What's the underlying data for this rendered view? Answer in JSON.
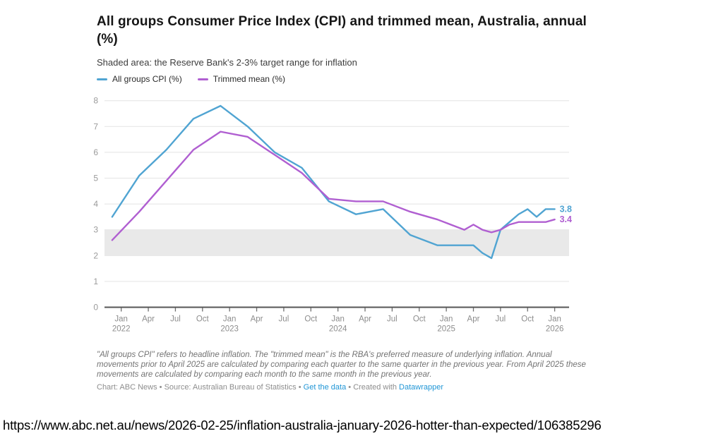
{
  "header": {
    "title": "All groups Consumer Price Index (CPI) and trimmed mean, Australia, annual (%)",
    "subtitle": "Shaded area: the Reserve Bank's 2-3% target range for inflation"
  },
  "legend": {
    "items": [
      {
        "label": "All groups CPI (%)",
        "color": "#50a4d2"
      },
      {
        "label": "Trimmed mean (%)",
        "color": "#b05fd1"
      }
    ]
  },
  "chart_data": {
    "type": "line",
    "title": "All groups Consumer Price Index (CPI) and trimmed mean, Australia, annual (%)",
    "subtitle": "Shaded area: the Reserve Bank's 2-3% target range for inflation",
    "xlabel": "",
    "ylabel": "",
    "ylim": [
      0,
      8
    ],
    "y_ticks": [
      0,
      1,
      2,
      3,
      4,
      5,
      6,
      7,
      8
    ],
    "grid": "horizontal",
    "legend_position": "top",
    "target_band": {
      "from": 2,
      "to": 3,
      "color": "#e9e9e9",
      "meaning": "Reserve Bank 2-3% inflation target range"
    },
    "x_labels": [
      "Dec 2021",
      "Mar 2022",
      "Jun 2022",
      "Sep 2022",
      "Dec 2022",
      "Mar 2023",
      "Jun 2023",
      "Sep 2023",
      "Dec 2023",
      "Mar 2024",
      "Jun 2024",
      "Sep 2024",
      "Dec 2024",
      "Mar 2025",
      "Apr 2025",
      "May 2025",
      "Jun 2025",
      "Jul 2025",
      "Aug 2025",
      "Sep 2025",
      "Oct 2025",
      "Nov 2025",
      "Dec 2025",
      "Jan 2026"
    ],
    "x_month_offsets": [
      0,
      3,
      6,
      9,
      12,
      15,
      18,
      21,
      24,
      27,
      30,
      33,
      36,
      39,
      40,
      41,
      42,
      43,
      44,
      45,
      46,
      47,
      48,
      49
    ],
    "series": [
      {
        "name": "All groups CPI (%)",
        "color": "#50a4d2",
        "end_label": "3.8",
        "values": [
          3.5,
          5.1,
          6.1,
          7.3,
          7.8,
          7.0,
          6.0,
          5.4,
          4.1,
          3.6,
          3.8,
          2.8,
          2.4,
          2.4,
          2.4,
          2.1,
          1.9,
          3.0,
          3.3,
          3.6,
          3.8,
          3.5,
          3.8,
          3.8
        ]
      },
      {
        "name": "Trimmed mean (%)",
        "color": "#b05fd1",
        "end_label": "3.4",
        "values": [
          2.6,
          3.7,
          4.9,
          6.1,
          6.8,
          6.6,
          5.9,
          5.2,
          4.2,
          4.1,
          4.1,
          3.7,
          3.4,
          3.0,
          3.2,
          3.0,
          2.9,
          3.0,
          3.2,
          3.3,
          3.3,
          3.3,
          3.3,
          3.4
        ]
      }
    ],
    "x_axis_ticks": [
      {
        "m": 1,
        "line1": "Jan",
        "line2": "2022"
      },
      {
        "m": 4,
        "line1": "Apr"
      },
      {
        "m": 7,
        "line1": "Jul"
      },
      {
        "m": 10,
        "line1": "Oct"
      },
      {
        "m": 13,
        "line1": "Jan",
        "line2": "2023"
      },
      {
        "m": 16,
        "line1": "Apr"
      },
      {
        "m": 19,
        "line1": "Jul"
      },
      {
        "m": 22,
        "line1": "Oct"
      },
      {
        "m": 25,
        "line1": "Jan",
        "line2": "2024"
      },
      {
        "m": 28,
        "line1": "Apr"
      },
      {
        "m": 31,
        "line1": "Jul"
      },
      {
        "m": 34,
        "line1": "Oct"
      },
      {
        "m": 37,
        "line1": "Jan",
        "line2": "2025"
      },
      {
        "m": 40,
        "line1": "Apr"
      },
      {
        "m": 43,
        "line1": "Jul"
      },
      {
        "m": 46,
        "line1": "Oct"
      },
      {
        "m": 49,
        "line1": "Jan",
        "line2": "2026"
      }
    ]
  },
  "notes": {
    "text": "\"All groups CPI\" refers to headline inflation. The \"trimmed mean\" is the RBA's preferred measure of underlying inflation. Annual movements prior to April 2025 are calculated by comparing each quarter to the same quarter in the previous year. From April 2025 these movements are calculated by comparing each month to the same month in the previous year."
  },
  "credit": {
    "chart_by": "Chart: ABC News",
    "source": "Source: Australian Bureau of Statistics",
    "get_data_label": "Get the data",
    "created_with_label": "Created with",
    "datawrapper_label": "Datawrapper",
    "separator": "•"
  },
  "caption_url": "https://www.abc.net.au/news/2026-02-25/inflation-australia-january-2026-hotter-than-expected/106385296"
}
